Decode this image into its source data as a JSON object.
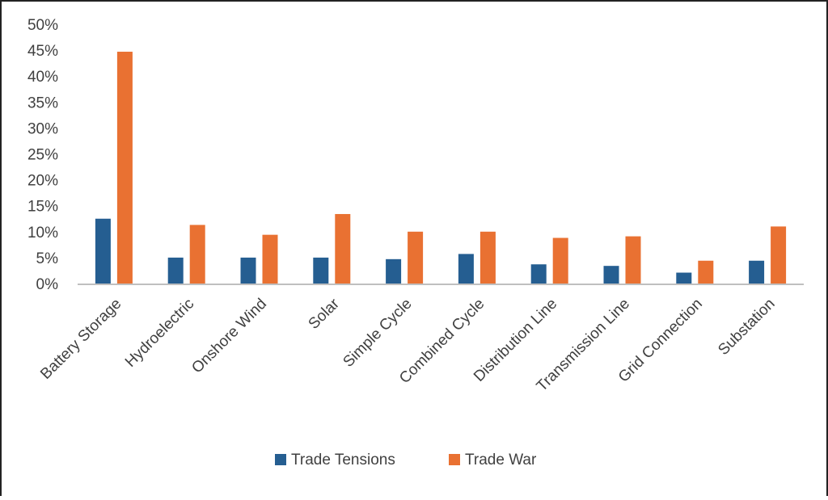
{
  "chart_data": {
    "type": "bar",
    "title": "",
    "xlabel": "",
    "ylabel": "",
    "ylim": [
      0,
      50
    ],
    "y_ticks": [
      "0%",
      "5%",
      "10%",
      "15%",
      "20%",
      "25%",
      "30%",
      "35%",
      "40%",
      "45%",
      "50%"
    ],
    "y_tick_values": [
      0,
      5,
      10,
      15,
      20,
      25,
      30,
      35,
      40,
      45,
      50
    ],
    "grid": false,
    "legend_position": "bottom",
    "categories": [
      "Battery Storage",
      "Hydroelectric",
      "Onshore Wind",
      "Solar",
      "Simple Cycle",
      "Combined Cycle",
      "Distribution Line",
      "Transmission Line",
      "Grid Connection",
      "Substation"
    ],
    "series": [
      {
        "name": "Trade Tensions",
        "color": "#255e91",
        "values": [
          12.5,
          5.0,
          5.0,
          5.0,
          4.7,
          5.7,
          3.7,
          3.4,
          2.1,
          4.4
        ]
      },
      {
        "name": "Trade War",
        "color": "#e97132",
        "values": [
          44.7,
          11.3,
          9.4,
          13.4,
          10.0,
          10.0,
          8.8,
          9.1,
          4.4,
          11.0
        ]
      }
    ]
  }
}
